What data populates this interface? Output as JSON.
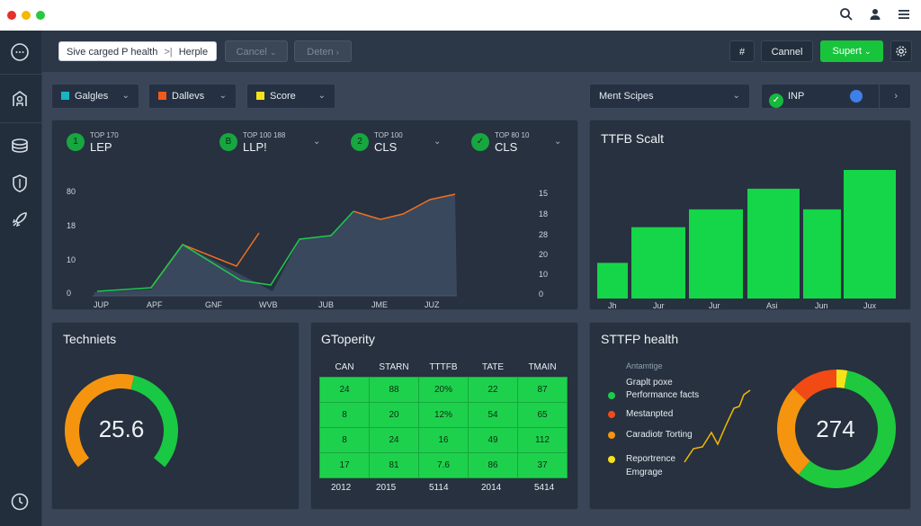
{
  "window": {
    "dots": [
      "#e5312d",
      "#f5b800",
      "#28c840"
    ],
    "icons": [
      "search-icon",
      "user-icon",
      "menu-icon"
    ]
  },
  "sidebar": {
    "icons": [
      "chat-icon",
      "network-icon",
      "stack-icon",
      "shield-icon",
      "rocket-icon",
      "history-icon"
    ]
  },
  "topbar": {
    "search_value": "Sive carged P health",
    "search_sep": ">|",
    "search_tail": "Herple",
    "cancel_label": "Cancel",
    "disabled_label": "Deten",
    "hash_label": "#",
    "cannel_label": "Cannel",
    "supert_label": "Supert"
  },
  "filters": {
    "items": [
      {
        "label": "Galgles",
        "color": "#1ab3c4"
      },
      {
        "label": "Dallevs",
        "color": "#f35a1a"
      },
      {
        "label": "Score",
        "color": "#f5e31a"
      }
    ],
    "ment_label": "Ment Scipes",
    "inp_label": "INP"
  },
  "metrics": [
    {
      "icon": "1",
      "small": "TOP 170",
      "big": "LEP",
      "has_chev": false
    },
    {
      "icon": "B",
      "small": "TOP 100 188",
      "big": "LLP!",
      "has_chev": true
    },
    {
      "icon": "2",
      "small": "TOP 100",
      "big": "CLS",
      "has_chev": true
    },
    {
      "icon": "✓",
      "small": "TOP 80 10",
      "big": "CLS",
      "has_chev": true
    }
  ],
  "line_chart": {
    "y_left": [
      "80",
      "18",
      "10",
      "0"
    ],
    "y_right": [
      "15",
      "18",
      "28",
      "20",
      "10",
      "0"
    ],
    "x_labels": [
      "JUP",
      "APF",
      "GNF",
      "WVB",
      "JUB",
      "JME",
      "JUZ"
    ],
    "colors": {
      "fill": "#3a4a5f",
      "orange": "#f36f1f",
      "green": "#1ec94d"
    }
  },
  "bar_chart": {
    "title": "TTFB Scalt",
    "categories": [
      "Jh",
      "Jur",
      "Jur",
      "Asi",
      "Jun",
      "Jux"
    ],
    "values": [
      38,
      76,
      95,
      117,
      95,
      137
    ],
    "color": "#14d648"
  },
  "gauge_panel": {
    "title": "Techniets",
    "value": "25.6",
    "green_fraction": 0.45,
    "colors": {
      "green": "#19c843",
      "orange": "#f5950f",
      "track": "#1a2330"
    }
  },
  "table_panel": {
    "title": "GToperity",
    "headers": [
      "CAN",
      "STARN",
      "TTTFB",
      "TATE",
      "TMAIN"
    ],
    "rows": [
      [
        "24",
        "88",
        "20%",
        "22",
        "87"
      ],
      [
        "8",
        "20",
        "12%",
        "54",
        "65"
      ],
      [
        "8",
        "24",
        "16",
        "49",
        "112"
      ],
      [
        "17",
        "81",
        "7.6",
        "86",
        "37"
      ]
    ],
    "footer": [
      "2012",
      "2015",
      "5114",
      "2014",
      "5414"
    ]
  },
  "health_panel": {
    "title": "STTFP health",
    "subtitle": "Antamtige",
    "legend": [
      {
        "label": "Graplt poxe",
        "color": null
      },
      {
        "label": "Performance facts",
        "color": "#1ec94d"
      },
      {
        "label": "Mestanpted",
        "color": "#f34a1a"
      },
      {
        "label": "Caradiotr Torting",
        "color": "#f5950f"
      },
      {
        "label": "Reportrence",
        "color": "#f5e31a"
      },
      {
        "label": "Emgrage",
        "color": null
      }
    ],
    "donut_value": "274",
    "slices": [
      {
        "color": "#f5e31a",
        "fraction": 0.03
      },
      {
        "color": "#1ec93d",
        "fraction": 0.58
      },
      {
        "color": "#f5950f",
        "fraction": 0.26
      },
      {
        "color": "#f24a14",
        "fraction": 0.13
      }
    ],
    "sparkline_color": "#f5b800"
  }
}
